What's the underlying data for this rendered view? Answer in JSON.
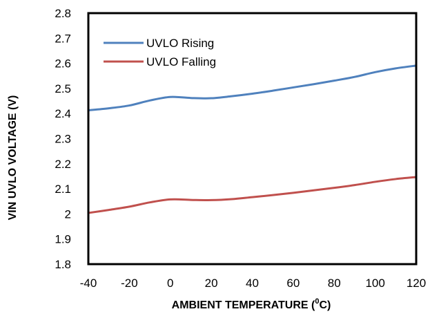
{
  "chart_data": {
    "type": "line",
    "xlabel": "AMBIENT  TEMPERATURE  (",
    "xlabel_unit_sup": "0",
    "xlabel_unit_tail": "C)",
    "ylabel": "VIN UVLO VOLTAGE  (V)",
    "xlim": [
      -40,
      120
    ],
    "ylim": [
      1.8,
      2.8
    ],
    "x_ticks": [
      -40,
      -20,
      0,
      20,
      40,
      60,
      80,
      100,
      120
    ],
    "x_tick_labels": [
      "-40",
      "-20",
      "0",
      "20",
      "40",
      "60",
      "80",
      "100",
      "120"
    ],
    "y_ticks": [
      1.8,
      1.9,
      2.0,
      2.1,
      2.2,
      2.3,
      2.4,
      2.5,
      2.6,
      2.7,
      2.8
    ],
    "y_tick_labels": [
      "1.8",
      "1.9",
      "2",
      "2.1",
      "2.2",
      "2.3",
      "2.4",
      "2.5",
      "2.6",
      "2.7",
      "2.8"
    ],
    "grid": false,
    "legend_position": "top-left",
    "series": [
      {
        "name": "UVLO Rising",
        "color": "#4F81BD",
        "x": [
          -40,
          -30,
          -20,
          -10,
          0,
          10,
          20,
          30,
          40,
          50,
          60,
          70,
          80,
          90,
          100,
          110,
          120
        ],
        "y": [
          2.413,
          2.421,
          2.432,
          2.452,
          2.466,
          2.462,
          2.461,
          2.469,
          2.479,
          2.491,
          2.504,
          2.517,
          2.531,
          2.546,
          2.565,
          2.58,
          2.591
        ]
      },
      {
        "name": "UVLO Falling",
        "color": "#C0504D",
        "x": [
          -40,
          -30,
          -20,
          -10,
          0,
          10,
          20,
          30,
          40,
          50,
          60,
          70,
          80,
          90,
          100,
          110,
          120
        ],
        "y": [
          2.004,
          2.016,
          2.029,
          2.046,
          2.058,
          2.056,
          2.055,
          2.059,
          2.067,
          2.075,
          2.084,
          2.094,
          2.104,
          2.115,
          2.128,
          2.139,
          2.147
        ]
      }
    ]
  }
}
